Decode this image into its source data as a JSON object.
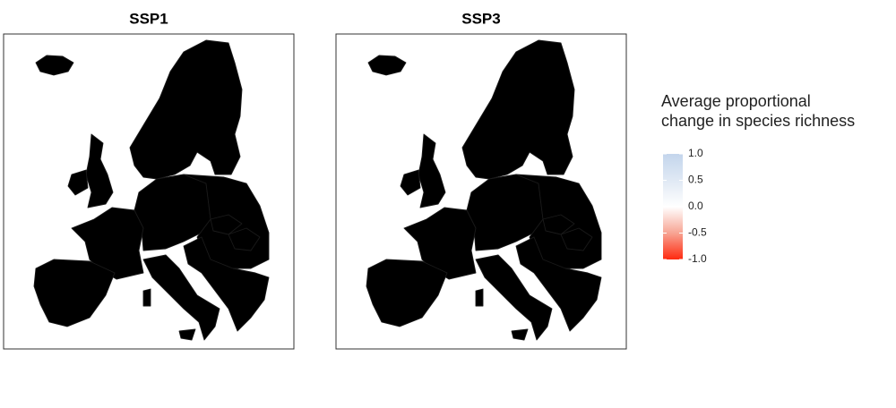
{
  "panels": [
    {
      "title": "SSP1"
    },
    {
      "title": "SSP3"
    }
  ],
  "legend": {
    "title": [
      "Average proportional",
      "change in species richness"
    ],
    "scale": [
      -1,
      1
    ],
    "ticks": [
      {
        "value": 1,
        "label": "1.0"
      },
      {
        "value": 0.5,
        "label": "0.5"
      },
      {
        "value": 0,
        "label": "0.0"
      },
      {
        "value": -0.5,
        "label": "-0.5"
      },
      {
        "value": -1,
        "label": "-1.0"
      }
    ]
  }
}
